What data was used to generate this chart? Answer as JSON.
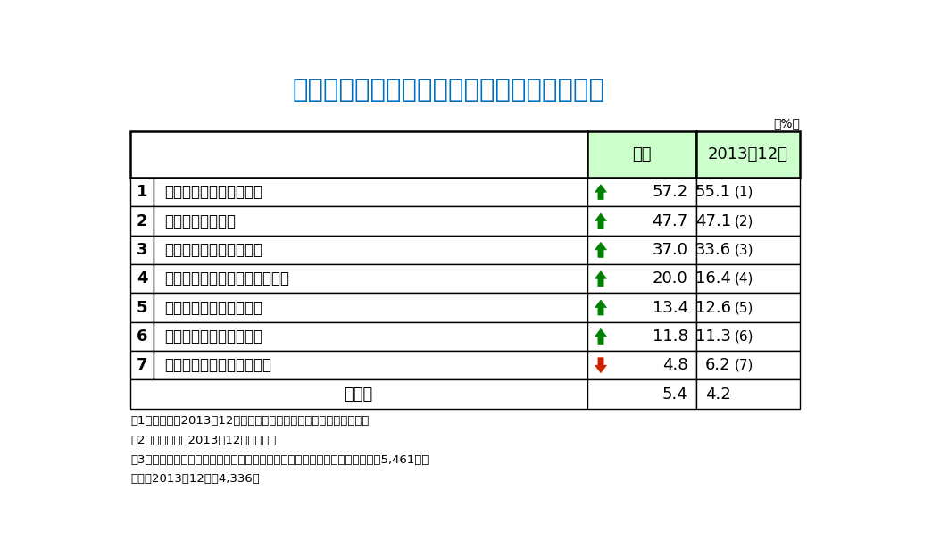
{
  "title": "人手が不足している部門・役割（複数回答）",
  "title_color": "#0070C0",
  "percent_label": "（%）",
  "header_bg": "#CCFFCC",
  "header_col1": "全体",
  "header_col2": "2013年12月",
  "rows": [
    {
      "rank": "1",
      "label": "生産現場に携わる従業員",
      "arrow": "up",
      "value1": "57.2",
      "value2": "55.1",
      "rank2": "(1)"
    },
    {
      "rank": "2",
      "label": "営業部門の従業員",
      "arrow": "up",
      "value1": "47.7",
      "value2": "47.1",
      "rank2": "(2)"
    },
    {
      "rank": "3",
      "label": "高度な技術を持つ従業員",
      "arrow": "up",
      "value1": "37.0",
      "value2": "33.6",
      "rank2": "(3)"
    },
    {
      "rank": "4",
      "label": "経理・総務・人事部門の従業員",
      "arrow": "up",
      "value1": "20.0",
      "value2": "16.4",
      "rank2": "(4)"
    },
    {
      "rank": "5",
      "label": "経営・企画部門の従業員",
      "arrow": "up",
      "value1": "13.4",
      "value2": "12.6",
      "rank2": "(5)"
    },
    {
      "rank": "6",
      "label": "研究・開発部門の従業員",
      "arrow": "up",
      "value1": "11.8",
      "value2": "11.3",
      "rank2": "(6)"
    },
    {
      "rank": "7",
      "label": "海外との橋渡し役の従業員",
      "arrow": "down",
      "value1": "4.8",
      "value2": "6.2",
      "rank2": "(7)"
    }
  ],
  "other_row": {
    "label": "その他",
    "value1": "5.4",
    "value2": "4.2"
  },
  "notes": [
    "注1：矢印は、2013年12月より回答割合が高い（低い）ことを示す",
    "注2：カッコ内は2013年12月時の順位",
    "注3：母数は、従業員が「非常に不足」「不足」「やや不足」と回答した企業5,461社。",
    "　　　2013年12月は4,336社"
  ],
  "arrow_up_color": "#008000",
  "arrow_down_color": "#CC2200",
  "border_color": "#000000",
  "bg_color": "#FFFFFF",
  "text_color": "#000000",
  "header_text_color": "#000000"
}
